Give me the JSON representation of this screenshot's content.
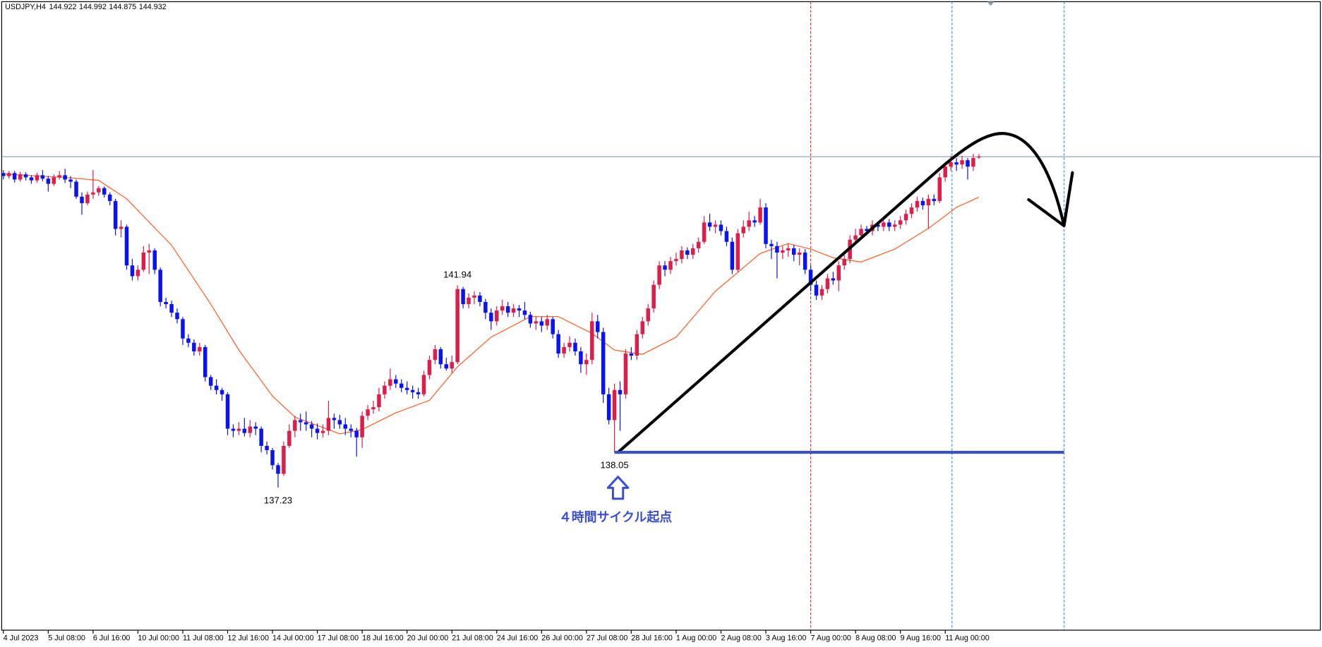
{
  "chart_data": {
    "type": "candlestick",
    "symbol": "USDJPY,H4",
    "ohlc": [
      144.922,
      144.992,
      144.875,
      144.932
    ],
    "xlim": [
      -0.3,
      234.9
    ],
    "ylim": [
      133.91,
      148.54
    ],
    "xticks": [
      {
        "value": 0,
        "label": "4 Jul 2023"
      },
      {
        "value": 8,
        "label": "5 Jul 08:00"
      },
      {
        "value": 16,
        "label": "6 Jul 16:00"
      },
      {
        "value": 24,
        "label": "10 Jul 00:00"
      },
      {
        "value": 32,
        "label": "11 Jul 08:00"
      },
      {
        "value": 40,
        "label": "12 Jul 16:00"
      },
      {
        "value": 48,
        "label": "14 Jul 00:00"
      },
      {
        "value": 56,
        "label": "17 Jul 08:00"
      },
      {
        "value": 64,
        "label": "18 Jul 16:00"
      },
      {
        "value": 72,
        "label": "20 Jul 00:00"
      },
      {
        "value": 80,
        "label": "21 Jul 08:00"
      },
      {
        "value": 88,
        "label": "24 Jul 16:00"
      },
      {
        "value": 96,
        "label": "26 Jul 00:00"
      },
      {
        "value": 104,
        "label": "27 Jul 08:00"
      },
      {
        "value": 112,
        "label": "28 Jul 16:00"
      },
      {
        "value": 120,
        "label": "1 Aug 00:00"
      },
      {
        "value": 128,
        "label": "2 Aug 08:00"
      },
      {
        "value": 136,
        "label": "3 Aug 16:00"
      },
      {
        "value": 144,
        "label": "7 Aug 00:00"
      },
      {
        "value": 152,
        "label": "8 Aug 08:00"
      },
      {
        "value": 160,
        "label": "9 Aug 16:00"
      },
      {
        "value": 168,
        "label": "11 Aug 00:00"
      }
    ],
    "up_color": "#dc1e4a",
    "down_color": "#0a14f0",
    "candles": [
      [
        144.55,
        144.62,
        144.4,
        144.48
      ],
      [
        144.48,
        144.6,
        144.42,
        144.55
      ],
      [
        144.55,
        144.6,
        144.33,
        144.4
      ],
      [
        144.4,
        144.58,
        144.35,
        144.52
      ],
      [
        144.52,
        144.57,
        144.38,
        144.45
      ],
      [
        144.45,
        144.5,
        144.3,
        144.38
      ],
      [
        144.38,
        144.56,
        144.32,
        144.5
      ],
      [
        144.5,
        144.62,
        144.36,
        144.42
      ],
      [
        144.42,
        144.48,
        144.12,
        144.3
      ],
      [
        144.3,
        144.52,
        144.25,
        144.45
      ],
      [
        144.45,
        144.6,
        144.4,
        144.5
      ],
      [
        144.5,
        144.65,
        144.32,
        144.4
      ],
      [
        144.4,
        144.48,
        144.2,
        144.35
      ],
      [
        144.35,
        144.4,
        143.95,
        144.0
      ],
      [
        144.0,
        144.1,
        143.58,
        143.85
      ],
      [
        143.85,
        144.12,
        143.8,
        144.05
      ],
      [
        144.05,
        144.62,
        143.95,
        144.1
      ],
      [
        144.1,
        144.25,
        144.02,
        144.2
      ],
      [
        144.2,
        144.24,
        143.98,
        144.05
      ],
      [
        144.05,
        144.1,
        143.8,
        143.9
      ],
      [
        143.9,
        143.95,
        143.1,
        143.25
      ],
      [
        143.25,
        143.45,
        143.05,
        143.3
      ],
      [
        143.3,
        143.35,
        142.3,
        142.4
      ],
      [
        142.4,
        142.55,
        142.05,
        142.15
      ],
      [
        142.15,
        142.4,
        142.05,
        142.3
      ],
      [
        142.3,
        142.85,
        142.25,
        142.7
      ],
      [
        142.7,
        142.9,
        142.2,
        142.75
      ],
      [
        142.75,
        142.8,
        142.2,
        142.3
      ],
      [
        142.3,
        142.35,
        141.45,
        141.55
      ],
      [
        141.55,
        141.65,
        141.4,
        141.5
      ],
      [
        141.5,
        141.58,
        141.2,
        141.3
      ],
      [
        141.3,
        141.4,
        141.05,
        141.15
      ],
      [
        141.15,
        141.2,
        140.55,
        140.7
      ],
      [
        140.7,
        140.8,
        140.5,
        140.6
      ],
      [
        140.6,
        140.68,
        140.3,
        140.4
      ],
      [
        140.4,
        140.6,
        140.3,
        140.5
      ],
      [
        140.5,
        140.55,
        139.7,
        139.8
      ],
      [
        139.8,
        139.85,
        139.5,
        139.6
      ],
      [
        139.6,
        139.75,
        139.4,
        139.5
      ],
      [
        139.5,
        139.55,
        139.25,
        139.4
      ],
      [
        139.4,
        139.45,
        138.45,
        138.6
      ],
      [
        138.6,
        138.7,
        138.4,
        138.55
      ],
      [
        138.55,
        138.75,
        138.45,
        138.6
      ],
      [
        138.6,
        138.85,
        138.42,
        138.5
      ],
      [
        138.5,
        138.8,
        138.4,
        138.65
      ],
      [
        138.65,
        138.75,
        138.45,
        138.6
      ],
      [
        138.6,
        138.65,
        138.05,
        138.2
      ],
      [
        138.2,
        138.3,
        138.0,
        138.1
      ],
      [
        138.1,
        138.15,
        137.65,
        137.75
      ],
      [
        137.75,
        137.8,
        137.23,
        137.55
      ],
      [
        137.55,
        138.3,
        137.5,
        138.2
      ],
      [
        138.2,
        138.7,
        138.15,
        138.55
      ],
      [
        138.55,
        138.9,
        138.4,
        138.8
      ],
      [
        138.8,
        138.95,
        138.55,
        138.75
      ],
      [
        138.75,
        139.0,
        138.55,
        138.7
      ],
      [
        138.7,
        138.78,
        138.4,
        138.6
      ],
      [
        138.6,
        138.72,
        138.35,
        138.5
      ],
      [
        138.5,
        138.7,
        138.4,
        138.55
      ],
      [
        138.55,
        139.25,
        138.45,
        138.85
      ],
      [
        138.85,
        138.95,
        138.6,
        138.8
      ],
      [
        138.8,
        138.92,
        138.6,
        138.7
      ],
      [
        138.7,
        138.85,
        138.45,
        138.6
      ],
      [
        138.6,
        138.7,
        138.4,
        138.55
      ],
      [
        138.55,
        138.62,
        137.95,
        138.4
      ],
      [
        138.4,
        139.0,
        138.15,
        138.9
      ],
      [
        138.9,
        139.15,
        138.8,
        139.05
      ],
      [
        139.05,
        139.25,
        138.95,
        139.1
      ],
      [
        139.1,
        139.55,
        139.0,
        139.4
      ],
      [
        139.4,
        139.7,
        139.3,
        139.6
      ],
      [
        139.6,
        140.0,
        139.5,
        139.75
      ],
      [
        139.75,
        139.85,
        139.55,
        139.65
      ],
      [
        139.65,
        139.75,
        139.45,
        139.55
      ],
      [
        139.55,
        139.7,
        139.4,
        139.5
      ],
      [
        139.5,
        139.6,
        139.3,
        139.45
      ],
      [
        139.45,
        139.55,
        139.3,
        139.4
      ],
      [
        139.4,
        139.95,
        139.35,
        139.85
      ],
      [
        139.85,
        140.3,
        139.75,
        140.2
      ],
      [
        140.2,
        140.55,
        140.1,
        140.45
      ],
      [
        140.45,
        140.5,
        140.0,
        140.1
      ],
      [
        140.1,
        140.25,
        139.95,
        140.0
      ],
      [
        140.0,
        140.3,
        139.9,
        140.15
      ],
      [
        140.15,
        141.94,
        140.1,
        141.85
      ],
      [
        141.85,
        141.9,
        141.4,
        141.5
      ],
      [
        141.5,
        141.75,
        141.4,
        141.65
      ],
      [
        141.65,
        141.8,
        141.5,
        141.7
      ],
      [
        141.7,
        141.78,
        141.45,
        141.55
      ],
      [
        141.55,
        141.62,
        141.15,
        141.3
      ],
      [
        141.3,
        141.4,
        140.9,
        141.1
      ],
      [
        141.1,
        141.45,
        141.0,
        141.35
      ],
      [
        141.35,
        141.6,
        141.25,
        141.45
      ],
      [
        141.45,
        141.55,
        141.2,
        141.3
      ],
      [
        141.3,
        141.5,
        141.2,
        141.4
      ],
      [
        141.4,
        141.48,
        141.2,
        141.35
      ],
      [
        141.35,
        141.55,
        141.15,
        141.25
      ],
      [
        141.25,
        141.32,
        140.95,
        141.05
      ],
      [
        141.05,
        141.2,
        140.9,
        141.1
      ],
      [
        141.1,
        141.2,
        140.85,
        141.0
      ],
      [
        141.0,
        141.25,
        140.9,
        141.15
      ],
      [
        141.15,
        141.2,
        140.7,
        140.8
      ],
      [
        140.8,
        140.9,
        140.25,
        140.35
      ],
      [
        140.35,
        140.6,
        140.25,
        140.5
      ],
      [
        140.5,
        140.75,
        140.4,
        140.6
      ],
      [
        140.6,
        140.7,
        140.3,
        140.4
      ],
      [
        140.4,
        140.5,
        139.9,
        140.1
      ],
      [
        140.1,
        140.35,
        139.85,
        140.2
      ],
      [
        140.2,
        141.3,
        140.1,
        141.1
      ],
      [
        141.1,
        141.25,
        140.7,
        140.85
      ],
      [
        140.85,
        140.95,
        139.2,
        139.4
      ],
      [
        139.4,
        139.55,
        138.7,
        138.8
      ],
      [
        138.8,
        139.65,
        138.05,
        139.5
      ],
      [
        139.5,
        139.7,
        138.55,
        139.4
      ],
      [
        139.4,
        140.45,
        139.3,
        140.35
      ],
      [
        140.35,
        140.5,
        140.2,
        140.3
      ],
      [
        140.3,
        140.9,
        140.2,
        140.8
      ],
      [
        140.8,
        141.2,
        140.7,
        141.1
      ],
      [
        141.1,
        141.5,
        141.0,
        141.4
      ],
      [
        141.4,
        142.05,
        141.3,
        141.95
      ],
      [
        141.95,
        142.5,
        141.85,
        142.4
      ],
      [
        142.4,
        142.5,
        142.15,
        142.3
      ],
      [
        142.3,
        142.6,
        142.2,
        142.5
      ],
      [
        142.5,
        142.7,
        142.4,
        142.55
      ],
      [
        142.55,
        142.85,
        142.45,
        142.75
      ],
      [
        142.75,
        142.82,
        142.55,
        142.65
      ],
      [
        142.65,
        142.9,
        142.55,
        142.8
      ],
      [
        142.8,
        143.05,
        142.7,
        142.95
      ],
      [
        142.95,
        143.55,
        142.9,
        143.4
      ],
      [
        143.4,
        143.6,
        143.2,
        143.3
      ],
      [
        143.3,
        143.45,
        143.15,
        143.35
      ],
      [
        143.35,
        143.45,
        143.1,
        143.2
      ],
      [
        143.2,
        143.3,
        142.85,
        142.95
      ],
      [
        142.95,
        143.05,
        142.2,
        142.3
      ],
      [
        142.3,
        143.25,
        142.25,
        143.15
      ],
      [
        143.15,
        143.45,
        143.05,
        143.3
      ],
      [
        143.3,
        143.65,
        143.2,
        143.45
      ],
      [
        143.45,
        143.55,
        143.3,
        143.4
      ],
      [
        143.4,
        143.95,
        143.35,
        143.75
      ],
      [
        143.75,
        143.85,
        142.8,
        142.9
      ],
      [
        142.9,
        143.0,
        142.55,
        142.85
      ],
      [
        142.85,
        142.95,
        142.1,
        142.7
      ],
      [
        142.7,
        142.85,
        142.55,
        142.75
      ],
      [
        142.75,
        142.9,
        142.6,
        142.8
      ],
      [
        142.8,
        142.88,
        142.5,
        142.65
      ],
      [
        142.65,
        142.8,
        142.4,
        142.7
      ],
      [
        142.7,
        142.78,
        142.2,
        142.3
      ],
      [
        142.3,
        142.4,
        141.8,
        141.95
      ],
      [
        141.95,
        142.05,
        141.6,
        141.7
      ],
      [
        141.7,
        141.95,
        141.6,
        141.85
      ],
      [
        141.85,
        142.2,
        141.75,
        142.1
      ],
      [
        142.1,
        142.25,
        141.95,
        142.05
      ],
      [
        142.05,
        142.5,
        141.8,
        142.4
      ],
      [
        142.4,
        142.65,
        142.3,
        142.55
      ],
      [
        142.55,
        143.1,
        142.45,
        143.0
      ],
      [
        143.0,
        143.25,
        142.9,
        143.1
      ],
      [
        143.1,
        143.35,
        143.0,
        143.25
      ],
      [
        143.25,
        143.32,
        143.1,
        143.2
      ],
      [
        143.2,
        143.45,
        143.1,
        143.35
      ],
      [
        143.35,
        143.42,
        143.2,
        143.3
      ],
      [
        143.3,
        143.5,
        143.2,
        143.4
      ],
      [
        143.4,
        143.48,
        143.2,
        143.3
      ],
      [
        143.3,
        143.45,
        143.2,
        143.35
      ],
      [
        143.35,
        143.55,
        143.25,
        143.45
      ],
      [
        143.45,
        143.7,
        143.35,
        143.6
      ],
      [
        143.6,
        143.85,
        143.5,
        143.75
      ],
      [
        143.75,
        144.0,
        143.65,
        143.9
      ],
      [
        143.9,
        143.98,
        143.7,
        143.8
      ],
      [
        143.8,
        144.05,
        143.25,
        143.95
      ],
      [
        143.95,
        144.05,
        143.8,
        143.9
      ],
      [
        143.9,
        144.55,
        143.85,
        144.45
      ],
      [
        144.45,
        144.8,
        144.35,
        144.7
      ],
      [
        144.7,
        144.95,
        144.6,
        144.8
      ],
      [
        144.8,
        144.9,
        144.6,
        144.75
      ],
      [
        144.75,
        144.95,
        144.65,
        144.85
      ],
      [
        144.85,
        144.9,
        144.4,
        144.7
      ],
      [
        144.7,
        145.0,
        144.6,
        144.9
      ],
      [
        144.92,
        144.99,
        144.88,
        144.93
      ]
    ],
    "ma": {
      "color": "#ff5a1f",
      "x": [
        0,
        12,
        17,
        22,
        30,
        37,
        42,
        48,
        52,
        60,
        64,
        70,
        76,
        81,
        87,
        94,
        99,
        105,
        109,
        114,
        120,
        127,
        135,
        140,
        144,
        148,
        153,
        159,
        165,
        170,
        174
      ],
      "values": [
        144.53,
        144.44,
        144.38,
        143.95,
        142.87,
        141.5,
        140.43,
        139.36,
        138.87,
        138.48,
        138.58,
        138.97,
        139.26,
        140.04,
        140.73,
        141.21,
        141.21,
        140.82,
        140.43,
        140.33,
        140.73,
        141.8,
        142.68,
        142.91,
        142.78,
        142.58,
        142.48,
        142.78,
        143.26,
        143.75,
        143.99
      ]
    },
    "bid": {
      "value": 144.932,
      "color": "#8a9aa8"
    },
    "vlines": [
      {
        "x": 144,
        "color": "#e03030"
      },
      {
        "x": 169.2,
        "color": "#3399ff"
      },
      {
        "x": 189.2,
        "color": "#3399ff"
      }
    ],
    "support": {
      "value": 138.05,
      "x": [
        109,
        189.2
      ],
      "color": "#3a4fd0"
    },
    "annotations": [
      {
        "value": 141.94,
        "x": 81,
        "side": "above"
      },
      {
        "value": 137.23,
        "x": 49,
        "side": "below"
      },
      {
        "value": 138.05,
        "x": 109,
        "side": "below"
      }
    ],
    "cycle_label": "４時間サイクル起点"
  }
}
